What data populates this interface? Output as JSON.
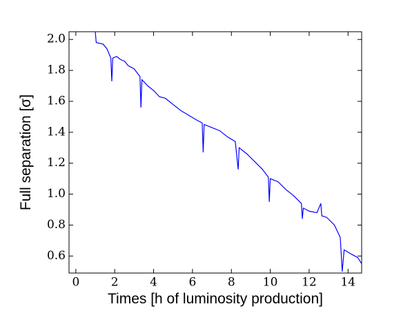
{
  "chart_data": {
    "type": "line",
    "xlabel": "Times [h of luminosity production]",
    "ylabel": "Full separation [σ]",
    "xlim": [
      -0.35,
      14.7
    ],
    "ylim": [
      0.49,
      2.05
    ],
    "xticks": [
      0,
      2,
      4,
      6,
      8,
      10,
      12,
      14
    ],
    "yticks": [
      0.6,
      0.8,
      {
        "value": 1.0,
        "label": "1.0"
      },
      1.2,
      1.4,
      1.6,
      1.8,
      {
        "value": 2.0,
        "label": "2.0"
      }
    ],
    "grid": false,
    "series": [
      {
        "color": "#0000ff",
        "x": [
          1.0,
          1.05,
          1.4,
          1.6,
          1.8,
          1.85,
          1.9,
          2.1,
          2.3,
          2.5,
          2.7,
          3.0,
          3.3,
          3.35,
          3.4,
          3.7,
          4.0,
          4.3,
          4.6,
          5.0,
          5.4,
          5.8,
          6.2,
          6.5,
          6.55,
          6.6,
          7.0,
          7.4,
          7.8,
          8.2,
          8.35,
          8.4,
          8.8,
          9.2,
          9.6,
          9.9,
          9.95,
          10.0,
          10.4,
          10.8,
          11.2,
          11.6,
          11.65,
          11.7,
          12.0,
          12.4,
          12.6,
          12.65,
          12.9,
          13.3,
          13.6,
          13.7,
          13.8,
          14.2,
          14.5,
          14.7
        ],
        "values": [
          2.05,
          1.98,
          1.97,
          1.94,
          1.88,
          1.73,
          1.88,
          1.89,
          1.87,
          1.86,
          1.83,
          1.81,
          1.76,
          1.56,
          1.74,
          1.7,
          1.67,
          1.63,
          1.62,
          1.58,
          1.54,
          1.51,
          1.48,
          1.46,
          1.27,
          1.45,
          1.43,
          1.41,
          1.37,
          1.34,
          1.16,
          1.3,
          1.26,
          1.21,
          1.16,
          1.11,
          0.95,
          1.1,
          1.08,
          1.03,
          0.99,
          0.94,
          0.84,
          0.91,
          0.89,
          0.88,
          0.94,
          0.86,
          0.85,
          0.8,
          0.72,
          0.5,
          0.64,
          0.61,
          0.59,
          0.55
        ]
      }
    ]
  }
}
